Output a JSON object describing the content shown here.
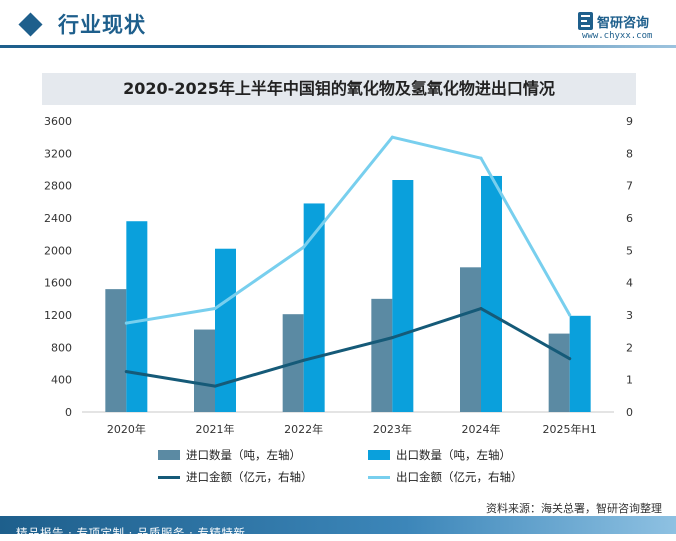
{
  "header": {
    "section_title": "行业现状",
    "logo_name": "智研咨询",
    "logo_url": "www.chyxx.com"
  },
  "chart_data": {
    "type": "bar+line",
    "title": "2020-2025年上半年中国钼的氧化物及氢氧化物进出口情况",
    "categories": [
      "2020年",
      "2021年",
      "2022年",
      "2023年",
      "2024年",
      "2025年H1"
    ],
    "left_axis": {
      "ylim": [
        0,
        3600
      ],
      "ticks": [
        0,
        400,
        800,
        1200,
        1600,
        2000,
        2400,
        2800,
        3200,
        3600
      ]
    },
    "right_axis": {
      "ylim": [
        0,
        9
      ],
      "ticks": [
        0,
        1,
        2,
        3,
        4,
        5,
        6,
        7,
        8,
        9
      ]
    },
    "bar_series": [
      {
        "name": "进口数量（吨，左轴）",
        "color": "#5b8aa3",
        "values": [
          1520,
          1020,
          1210,
          1400,
          1790,
          970
        ]
      },
      {
        "name": "出口数量（吨，左轴）",
        "color": "#0aa0dc",
        "values": [
          2360,
          2020,
          2580,
          2870,
          2920,
          1190
        ]
      }
    ],
    "line_series": [
      {
        "name": "进口金额（亿元，右轴）",
        "color": "#155a78",
        "values": [
          1.25,
          0.8,
          1.6,
          2.3,
          3.2,
          1.65
        ]
      },
      {
        "name": "出口金额（亿元，右轴）",
        "color": "#78cfee",
        "values": [
          2.75,
          3.2,
          5.1,
          8.5,
          7.85,
          3.0
        ]
      }
    ],
    "grid": false,
    "legend_position": "bottom"
  },
  "source": "资料来源：海关总署，智研咨询整理",
  "footer": {
    "tagline": "精品报告 · 专项定制 · 品质服务 · 专精特新"
  }
}
